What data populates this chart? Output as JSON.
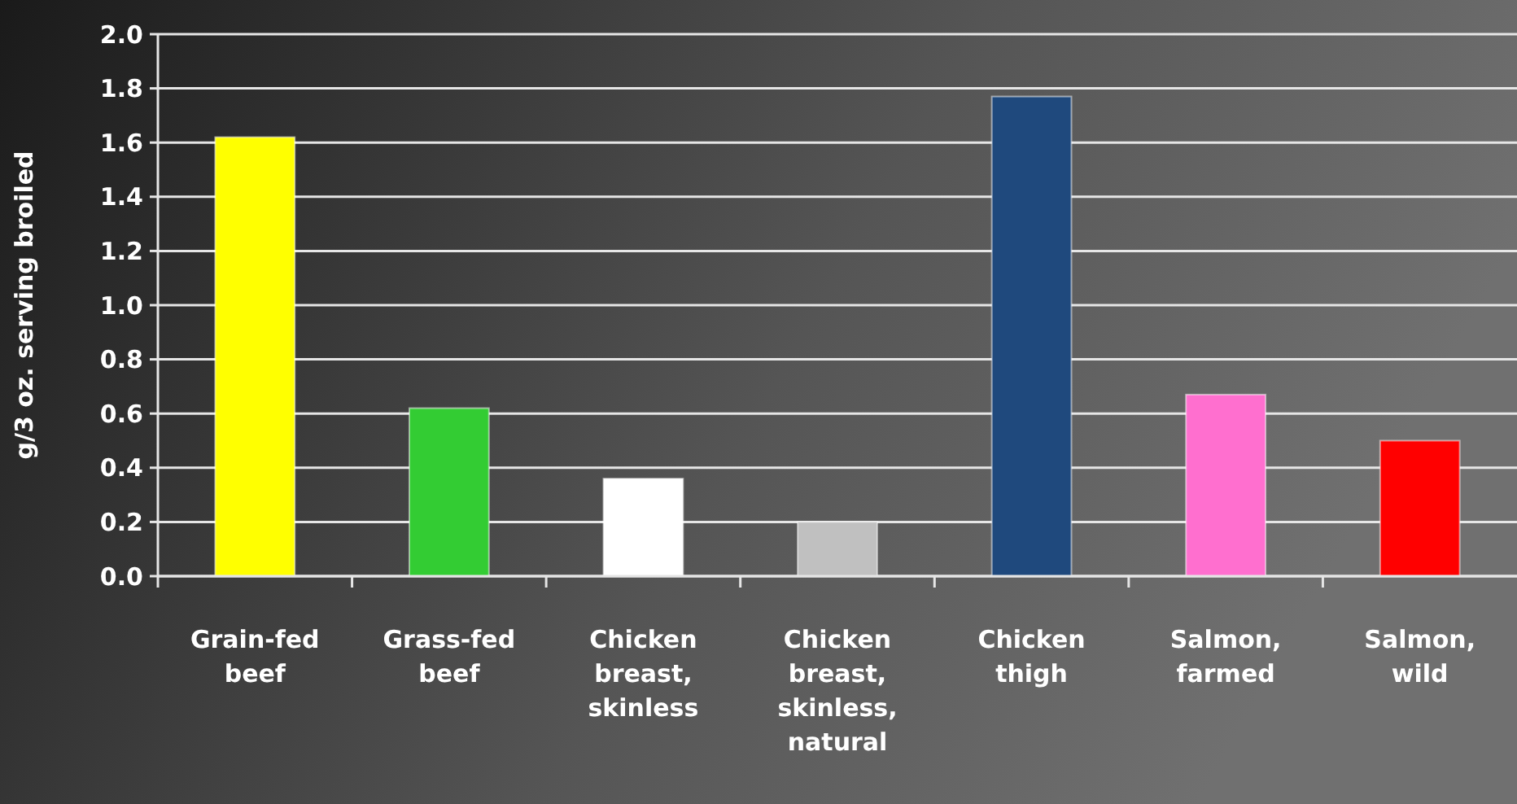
{
  "chart_data": {
    "type": "bar",
    "ylabel": "g/3 oz. serving broiled",
    "categories": [
      "Grain-fed beef",
      "Grass-fed beef",
      "Chicken breast, skinless",
      "Chicken breast, skinless, natural",
      "Chicken thigh",
      "Salmon, farmed",
      "Salmon, wild"
    ],
    "values": [
      1.62,
      0.62,
      0.36,
      0.2,
      1.77,
      0.67,
      0.5
    ],
    "colors": [
      "#ffff00",
      "#33cc33",
      "#ffffff",
      "#c0c0c0",
      "#1f497d",
      "#ff6fcf",
      "#ff0000"
    ],
    "ylim": [
      0,
      2.0
    ],
    "yticks": [
      {
        "value": 0,
        "label": "0.0"
      },
      {
        "value": 0.2,
        "label": "0.2"
      },
      {
        "value": 0.4,
        "label": "0.4"
      },
      {
        "value": 0.6,
        "label": "0.6"
      },
      {
        "value": 0.8,
        "label": "0.8"
      },
      {
        "value": 1.0,
        "label": "1.0"
      },
      {
        "value": 1.2,
        "label": "1.2"
      },
      {
        "value": 1.4,
        "label": "1.4"
      },
      {
        "value": 1.6,
        "label": "1.6"
      },
      {
        "value": 1.8,
        "label": "1.8"
      },
      {
        "value": 2.0,
        "label": "2.0"
      }
    ],
    "grid": "y"
  }
}
